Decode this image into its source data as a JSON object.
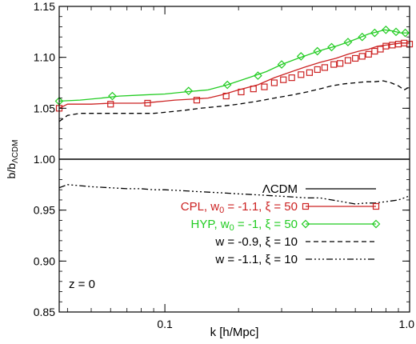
{
  "chart_data": {
    "type": "line",
    "xlabel": "k [h/Mpc]",
    "ylabel": {
      "main": "b/b",
      "sub": "ΛCDM"
    },
    "xscale": "log",
    "xlim": [
      0.037,
      1.0
    ],
    "ylim": [
      0.85,
      1.15
    ],
    "grid": false,
    "legend_position": "bottom-right",
    "annotation": "z = 0",
    "x_ticks": [
      {
        "value": 0.1,
        "label": "0.1"
      },
      {
        "value": 1.0,
        "label": "1.0"
      }
    ],
    "y_ticks": [
      {
        "value": 0.85,
        "label": "0.85"
      },
      {
        "value": 0.9,
        "label": "0.90"
      },
      {
        "value": 0.95,
        "label": "0.95"
      },
      {
        "value": 1.0,
        "label": "1.00"
      },
      {
        "value": 1.05,
        "label": "1.05"
      },
      {
        "value": 1.1,
        "label": "1.10"
      },
      {
        "value": 1.15,
        "label": "1.15"
      }
    ],
    "series": [
      {
        "id": "lcdm",
        "legend_html": "ΛCDM",
        "color": "#000000",
        "dash": "",
        "marker": "none",
        "x": [
          0.037,
          1.0
        ],
        "y": [
          1.0,
          1.0
        ]
      },
      {
        "id": "cpl",
        "legend_html": "CPL, w<tspan baseline-shift=\"-30%\" font-size=\"11\">0</tspan> = -1.1, ξ = 50",
        "color": "#cc2222",
        "dash": "",
        "marker": "square",
        "x": [
          0.037,
          0.04,
          0.045,
          0.05,
          0.06,
          0.07,
          0.08,
          0.09,
          0.1,
          0.11,
          0.13,
          0.15,
          0.17,
          0.2,
          0.24,
          0.28,
          0.33,
          0.38,
          0.43,
          0.5,
          0.56,
          0.62,
          0.68,
          0.74,
          0.8,
          0.86,
          0.92,
          1.0
        ],
        "y": [
          1.05,
          1.054,
          1.054,
          1.054,
          1.055,
          1.055,
          1.055,
          1.056,
          1.057,
          1.058,
          1.059,
          1.06,
          1.063,
          1.068,
          1.073,
          1.08,
          1.086,
          1.091,
          1.095,
          1.099,
          1.103,
          1.106,
          1.108,
          1.111,
          1.112,
          1.113,
          1.114,
          1.114
        ],
        "marker_x": [
          0.037,
          0.06,
          0.085,
          0.135,
          0.178,
          0.205,
          0.23,
          0.255,
          0.28,
          0.305,
          0.33,
          0.36,
          0.39,
          0.42,
          0.45,
          0.49,
          0.52,
          0.56,
          0.6,
          0.64,
          0.68,
          0.72,
          0.76,
          0.8,
          0.85,
          0.9,
          0.95,
          1.0
        ],
        "marker_y": [
          1.05,
          1.054,
          1.055,
          1.058,
          1.062,
          1.066,
          1.069,
          1.071,
          1.075,
          1.078,
          1.08,
          1.083,
          1.085,
          1.088,
          1.09,
          1.093,
          1.094,
          1.097,
          1.099,
          1.101,
          1.103,
          1.106,
          1.108,
          1.111,
          1.112,
          1.113,
          1.114,
          1.113
        ]
      },
      {
        "id": "hyp",
        "legend_html": "HYP, w<tspan baseline-shift=\"-30%\" font-size=\"11\">0</tspan> = -1, ξ = 50",
        "color": "#22cc22",
        "dash": "",
        "marker": "diamond",
        "x": [
          0.037,
          0.045,
          0.055,
          0.065,
          0.08,
          0.1,
          0.12,
          0.15,
          0.18,
          0.22,
          0.26,
          0.3,
          0.35,
          0.4,
          0.45,
          0.5,
          0.56,
          0.62,
          0.68,
          0.74,
          0.79,
          0.85,
          0.92,
          1.0
        ],
        "y": [
          1.057,
          1.058,
          1.06,
          1.062,
          1.063,
          1.064,
          1.066,
          1.068,
          1.073,
          1.08,
          1.086,
          1.093,
          1.099,
          1.104,
          1.108,
          1.111,
          1.115,
          1.119,
          1.123,
          1.125,
          1.127,
          1.126,
          1.124,
          1.124
        ],
        "marker_x": [
          0.037,
          0.061,
          0.125,
          0.18,
          0.24,
          0.3,
          0.36,
          0.42,
          0.48,
          0.56,
          0.64,
          0.72,
          0.8,
          0.88,
          0.96
        ],
        "marker_y": [
          1.057,
          1.062,
          1.067,
          1.073,
          1.082,
          1.093,
          1.101,
          1.106,
          1.11,
          1.115,
          1.12,
          1.124,
          1.127,
          1.125,
          1.124
        ]
      },
      {
        "id": "w09",
        "legend_html": "w = -0.9, ξ = 10",
        "color": "#000000",
        "dash": "6,4",
        "marker": "none",
        "x": [
          0.037,
          0.04,
          0.045,
          0.05,
          0.06,
          0.07,
          0.08,
          0.09,
          0.1,
          0.12,
          0.14,
          0.17,
          0.2,
          0.24,
          0.28,
          0.33,
          0.38,
          0.43,
          0.48,
          0.54,
          0.6,
          0.66,
          0.72,
          0.78,
          0.84,
          0.9,
          0.95,
          1.0
        ],
        "y": [
          1.037,
          1.043,
          1.045,
          1.045,
          1.045,
          1.045,
          1.045,
          1.045,
          1.046,
          1.048,
          1.05,
          1.052,
          1.054,
          1.057,
          1.06,
          1.063,
          1.066,
          1.069,
          1.072,
          1.074,
          1.075,
          1.076,
          1.076,
          1.077,
          1.075,
          1.072,
          1.068,
          1.071
        ]
      },
      {
        "id": "w11",
        "legend_html": "w = -1.1, ξ = 10",
        "color": "#000000",
        "dash": "8,3,2,3,2,3,2,3",
        "marker": "none",
        "x": [
          0.037,
          0.04,
          0.045,
          0.05,
          0.06,
          0.07,
          0.08,
          0.09,
          0.1,
          0.12,
          0.14,
          0.17,
          0.2,
          0.24,
          0.28,
          0.33,
          0.38,
          0.43,
          0.48,
          0.54,
          0.6,
          0.66,
          0.72,
          0.78,
          0.84,
          0.9,
          0.95,
          1.0
        ],
        "y": [
          0.972,
          0.975,
          0.974,
          0.973,
          0.972,
          0.971,
          0.971,
          0.97,
          0.97,
          0.969,
          0.968,
          0.967,
          0.966,
          0.965,
          0.964,
          0.963,
          0.962,
          0.962,
          0.96,
          0.958,
          0.956,
          0.957,
          0.957,
          0.958,
          0.959,
          0.96,
          0.962,
          0.964
        ]
      }
    ],
    "legend_order": [
      "lcdm",
      "cpl",
      "hyp",
      "w09",
      "w11"
    ]
  }
}
